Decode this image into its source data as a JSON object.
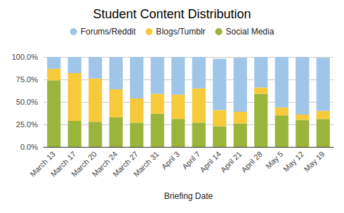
{
  "chart_data": {
    "type": "bar",
    "title": "Student Content Distribution",
    "x_label": "Briefing Date",
    "categories": [
      "March 13",
      "March 17",
      "March 20",
      "March 24",
      "March 27",
      "March 31",
      "April 3",
      "April 7",
      "April 14",
      "April 21",
      "April 28",
      "May 5",
      "May 12",
      "May 19"
    ],
    "series": [
      {
        "name": "Forums/Reddit",
        "color": "#9fc5e8",
        "values": [
          13,
          18,
          24,
          36,
          46,
          41,
          42,
          35,
          57,
          60,
          34,
          56,
          64,
          59
        ]
      },
      {
        "name": "Blogs/Tumblr",
        "color": "#f6ca3a",
        "values": [
          13,
          53,
          48,
          31,
          27,
          22,
          27,
          38,
          18,
          13,
          7,
          9,
          6,
          9
        ]
      },
      {
        "name": "Social Media",
        "color": "#9ab53a",
        "values": [
          74,
          29,
          28,
          33,
          27,
          37,
          31,
          27,
          23,
          26,
          59,
          35,
          30,
          31
        ]
      }
    ],
    "stacked": true,
    "ylim": [
      0,
      100
    ],
    "yticks": [
      {
        "value": 0,
        "label": "0.0%"
      },
      {
        "value": 25,
        "label": "25.0%"
      },
      {
        "value": 50,
        "label": "50.0%"
      },
      {
        "value": 75,
        "label": "75.0%"
      },
      {
        "value": 100,
        "label": "100.0%"
      }
    ],
    "grid": true,
    "legend": "top"
  }
}
